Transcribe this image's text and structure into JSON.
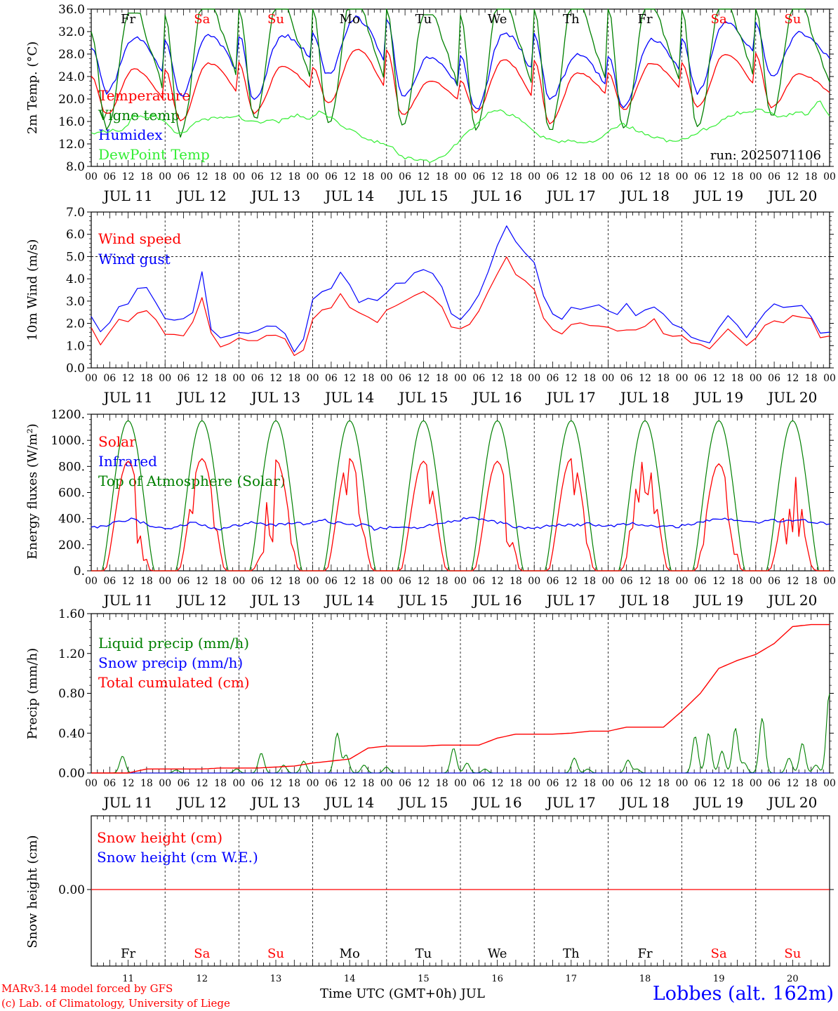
{
  "meteogram": {
    "day_numbers": [
      "11",
      "12",
      "13",
      "14",
      "15",
      "16",
      "17",
      "18",
      "19",
      "20"
    ],
    "month_day_labels": [
      "JUL 11",
      "JUL 12",
      "JUL 13",
      "JUL 14",
      "JUL 15",
      "JUL 16",
      "JUL 17",
      "JUL 18",
      "JUL 19",
      "JUL 20"
    ],
    "weekdays": [
      "Fr",
      "Sa",
      "Su",
      "Mo",
      "Tu",
      "We",
      "Th",
      "Fr",
      "Sa",
      "Su"
    ],
    "weekday_colors": [
      "#000000",
      "#ff0000",
      "#ff0000",
      "#000000",
      "#000000",
      "#000000",
      "#000000",
      "#000000",
      "#ff0000",
      "#ff0000"
    ],
    "hour_ticks": [
      "00",
      "06",
      "12",
      "18"
    ],
    "final_hour_tick": "00",
    "run_label": "run: 2025071106",
    "x_axis_title": "Time UTC (GMT+0h) JUL",
    "station": "Lobbes (alt. 162m)",
    "credit_line1": "MARv3.14 model forced by GFS",
    "credit_line2": "(c) Lab. of Climatology, University of Liege",
    "colors": {
      "red": "#ff0000",
      "green": "#008000",
      "blue": "#0000ff",
      "lightgreen": "#33ee33",
      "black": "#000000"
    }
  },
  "chart_data": [
    {
      "type": "line",
      "ylabel": "2m Temp. (°C)",
      "ylim": [
        8,
        36
      ],
      "yticks": [
        "8.0",
        "12.0",
        "16.0",
        "20.0",
        "24.0",
        "28.0",
        "32.0",
        "36.0"
      ],
      "legend": [
        "Temperature",
        "Vigne temp",
        "Humidex",
        "DewPoint Temp"
      ],
      "legend_colors": [
        "#ff0000",
        "#008000",
        "#0000ff",
        "#33ee33"
      ],
      "series": [
        {
          "name": "Temperature",
          "color": "#ff0000",
          "daily_min": [
            17.3,
            16.0,
            17.5,
            19.2,
            17.2,
            17.6,
            15.7,
            18.0,
            18.5,
            18.5
          ],
          "daily_max": [
            25.3,
            26.4,
            25.7,
            28.9,
            23.2,
            27.0,
            24.7,
            26.4,
            28.0,
            24.5
          ],
          "end": 19.3
        },
        {
          "name": "Vigne temp",
          "color": "#008000",
          "daily_min": [
            14.8,
            13.6,
            16.3,
            15.7,
            15.0,
            14.3,
            14.2,
            14.8,
            15.2,
            16.8
          ],
          "daily_max": [
            34.8,
            36.5,
            36.0,
            36.5,
            34.5,
            36.2,
            36.0,
            35.5,
            36.2,
            35.8
          ],
          "end": 16.6
        },
        {
          "name": "Humidex",
          "color": "#0000ff",
          "daily_min": [
            21.2,
            20.5,
            19.8,
            24.3,
            20.5,
            18.0,
            20.1,
            18.5,
            21.2,
            24.0
          ],
          "daily_max": [
            30.8,
            31.4,
            31.4,
            34.5,
            27.6,
            31.8,
            27.8,
            30.7,
            33.5,
            31.8
          ],
          "end": 24.2
        },
        {
          "name": "DewPoint Temp",
          "color": "#33ee33",
          "values": [
            14.0,
            14.2,
            14.4,
            14.1,
            16.9,
            16.7,
            17.0,
            16.3,
            14.1,
            13.8,
            15.8,
            16.3,
            16.8,
            16.9,
            17.0,
            16.1,
            15.7,
            16.4,
            16.0,
            16.6,
            17.2,
            16.2,
            17.9,
            16.6,
            15.4,
            14.5,
            13.4,
            12.6,
            12.1,
            11.2,
            9.6,
            9.2,
            9.0,
            8.8,
            9.9,
            11.9,
            13.6,
            15.5,
            17.2,
            18.0,
            17.4,
            16.7,
            15.2,
            13.3,
            13.0,
            12.4,
            12.5,
            12.5,
            12.3,
            13.2,
            14.5,
            15.6,
            14.8,
            14.0,
            13.3,
            12.8,
            12.3,
            12.8,
            13.8,
            14.6,
            15.5,
            16.8,
            17.5,
            17.7,
            18.1,
            17.8,
            16.6,
            17.2,
            17.5,
            17.3,
            19.8,
            16.8
          ]
        }
      ]
    },
    {
      "type": "line",
      "ylabel": "10m Wind (m/s)",
      "ylim": [
        0,
        7
      ],
      "yticks": [
        "0.0",
        "1.0",
        "2.0",
        "3.0",
        "4.0",
        "5.0",
        "6.0",
        "7.0"
      ],
      "reference_line": 5.0,
      "legend": [
        "Wind speed",
        "Wind gust"
      ],
      "legend_colors": [
        "#ff0000",
        "#0000ff"
      ],
      "series": [
        {
          "name": "Wind speed",
          "color": "#ff0000",
          "values": [
            1.9,
            1.0,
            1.8,
            2.2,
            2.0,
            2.9,
            2.4,
            1.5,
            1.7,
            1.4,
            2.0,
            3.3,
            1.2,
            1.0,
            1.1,
            1.3,
            1.2,
            1.3,
            1.5,
            1.3,
            0.6,
            0.9,
            2.4,
            2.7,
            2.8,
            3.5,
            2.3,
            2.4,
            2.0,
            2.5,
            2.8,
            2.9,
            3.3,
            3.4,
            3.1,
            2.5,
            1.3,
            2.0,
            2.1,
            3.2,
            4.2,
            5.0,
            4.3,
            3.9,
            3.5,
            1.9,
            1.4,
            1.8,
            2.0,
            1.9,
            2.0,
            1.8,
            1.6,
            1.7,
            1.6,
            1.9,
            2.3,
            1.2,
            1.6,
            1.0,
            1.0,
            0.8,
            1.4,
            1.8,
            1.3,
            0.8,
            1.6,
            2.2,
            2.0,
            2.3,
            2.1,
            2.4,
            1.2,
            1.4
          ]
        },
        {
          "name": "Wind gust",
          "color": "#0000ff",
          "values": [
            2.4,
            1.6,
            2.3,
            2.7,
            2.8,
            3.9,
            3.1,
            2.2,
            2.2,
            2.0,
            2.5,
            4.3,
            1.5,
            1.3,
            1.4,
            1.8,
            1.6,
            1.7,
            2.0,
            1.7,
            0.8,
            1.2,
            3.2,
            3.4,
            3.6,
            4.6,
            3.0,
            3.1,
            2.7,
            3.3,
            3.7,
            3.8,
            4.4,
            4.5,
            4.0,
            3.2,
            1.7,
            2.6,
            2.8,
            4.0,
            5.3,
            6.5,
            5.6,
            5.0,
            4.6,
            2.6,
            2.1,
            2.5,
            2.7,
            2.6,
            2.7,
            2.5,
            2.3,
            2.9,
            2.1,
            2.6,
            3.0,
            1.7,
            2.1,
            1.3,
            1.4,
            1.2,
            1.9,
            2.5,
            1.8,
            1.1,
            2.1,
            2.8,
            2.7,
            2.9,
            2.8,
            2.6,
            1.5,
            1.7
          ]
        }
      ]
    },
    {
      "type": "line",
      "ylabel": "Energy fluxes (W/m²)",
      "ylim": [
        0,
        1200
      ],
      "yticks": [
        "0.",
        "200.",
        "400.",
        "600.",
        "800.",
        "1000.",
        "1200."
      ],
      "legend": [
        "Solar",
        "Infrared",
        "Top of Atmosphere (Solar)"
      ],
      "legend_colors": [
        "#ff0000",
        "#0000ff",
        "#008000"
      ],
      "series": [
        {
          "name": "Top of Atmosphere (Solar)",
          "color": "#008000",
          "daily_peak": [
            1150,
            1150,
            1150,
            1150,
            1150,
            1150,
            1150,
            1150,
            1150,
            1150
          ]
        },
        {
          "name": "Solar",
          "color": "#ff0000",
          "daily_peak": [
            840,
            860,
            850,
            860,
            840,
            840,
            860,
            860,
            820,
            790
          ]
        },
        {
          "name": "Infrared",
          "color": "#0000ff",
          "values": [
            330,
            340,
            360,
            380,
            400,
            370,
            340,
            330,
            330,
            350,
            370,
            350,
            320,
            320,
            340,
            360,
            380,
            360,
            350,
            360,
            370,
            360,
            380,
            390,
            370,
            360,
            350,
            360,
            320,
            330,
            340,
            330,
            330,
            340,
            360,
            370,
            380,
            400,
            400,
            390,
            370,
            360,
            330,
            330,
            330,
            340,
            350,
            350,
            350,
            360,
            350,
            340,
            350,
            360,
            360,
            350,
            340,
            340,
            340,
            350,
            370,
            390,
            400,
            390,
            380,
            380,
            370,
            390,
            380,
            390,
            390,
            380,
            370,
            350
          ]
        }
      ]
    },
    {
      "type": "line",
      "ylabel": "Precip (mm/h)",
      "ylim": [
        0,
        1.6
      ],
      "yticks": [
        "0.00",
        "0.40",
        "0.80",
        "1.20",
        "1.60"
      ],
      "legend": [
        "Liquid precip (mm/h)",
        "Snow precip (mm/h)",
        "Total cumulated (cm)"
      ],
      "legend_colors": [
        "#008000",
        "#0000ff",
        "#ff0000"
      ],
      "series": [
        {
          "name": "Total cumulated (cm)",
          "color": "#ff0000",
          "values": [
            0,
            0,
            0,
            0.04,
            0.04,
            0.04,
            0.04,
            0.05,
            0.05,
            0.05,
            0.06,
            0.07,
            0.1,
            0.12,
            0.14,
            0.25,
            0.27,
            0.27,
            0.27,
            0.28,
            0.28,
            0.28,
            0.35,
            0.39,
            0.39,
            0.39,
            0.4,
            0.42,
            0.42,
            0.46,
            0.46,
            0.46,
            0.62,
            0.8,
            1.05,
            1.13,
            1.19,
            1.3,
            1.47,
            1.49,
            1.49
          ]
        },
        {
          "name": "Liquid precip (mm/h)",
          "color": "#008000",
          "peaks": [
            [
              14,
              0.17
            ],
            [
              38,
              0.03
            ],
            [
              65,
              0.04
            ],
            [
              76,
              0.2
            ],
            [
              86,
              0.08
            ],
            [
              95,
              0.12
            ],
            [
              110,
              0.4
            ],
            [
              114,
              0.18
            ],
            [
              122,
              0.08
            ],
            [
              132,
              0.06
            ],
            [
              162,
              0.25
            ],
            [
              168,
              0.1
            ],
            [
              176,
              0.04
            ],
            [
              216,
              0.15
            ],
            [
              222,
              0.04
            ],
            [
              240,
              0.13
            ],
            [
              244,
              0.04
            ],
            [
              270,
              0.37
            ],
            [
              276,
              0.4
            ],
            [
              282,
              0.22
            ],
            [
              288,
              0.45
            ],
            [
              292,
              0.1
            ],
            [
              300,
              0.55
            ],
            [
              312,
              0.15
            ],
            [
              318,
              0.3
            ],
            [
              324,
              0.08
            ],
            [
              330,
              0.8
            ],
            [
              336,
              0.15
            ]
          ]
        },
        {
          "name": "Snow precip (mm/h)",
          "color": "#0000ff",
          "values": [
            0
          ]
        }
      ]
    },
    {
      "type": "line",
      "ylabel": "Snow height (cm)",
      "yticks": [
        "0.00"
      ],
      "legend": [
        "Snow height (cm)",
        "Snow height (cm W.E.)"
      ],
      "legend_colors": [
        "#ff0000",
        "#0000ff"
      ],
      "series": [
        {
          "name": "Snow height (cm)",
          "color": "#ff0000",
          "values": [
            0
          ]
        },
        {
          "name": "Snow height (cm W.E.)",
          "color": "#0000ff",
          "values": [
            0
          ]
        }
      ]
    }
  ]
}
